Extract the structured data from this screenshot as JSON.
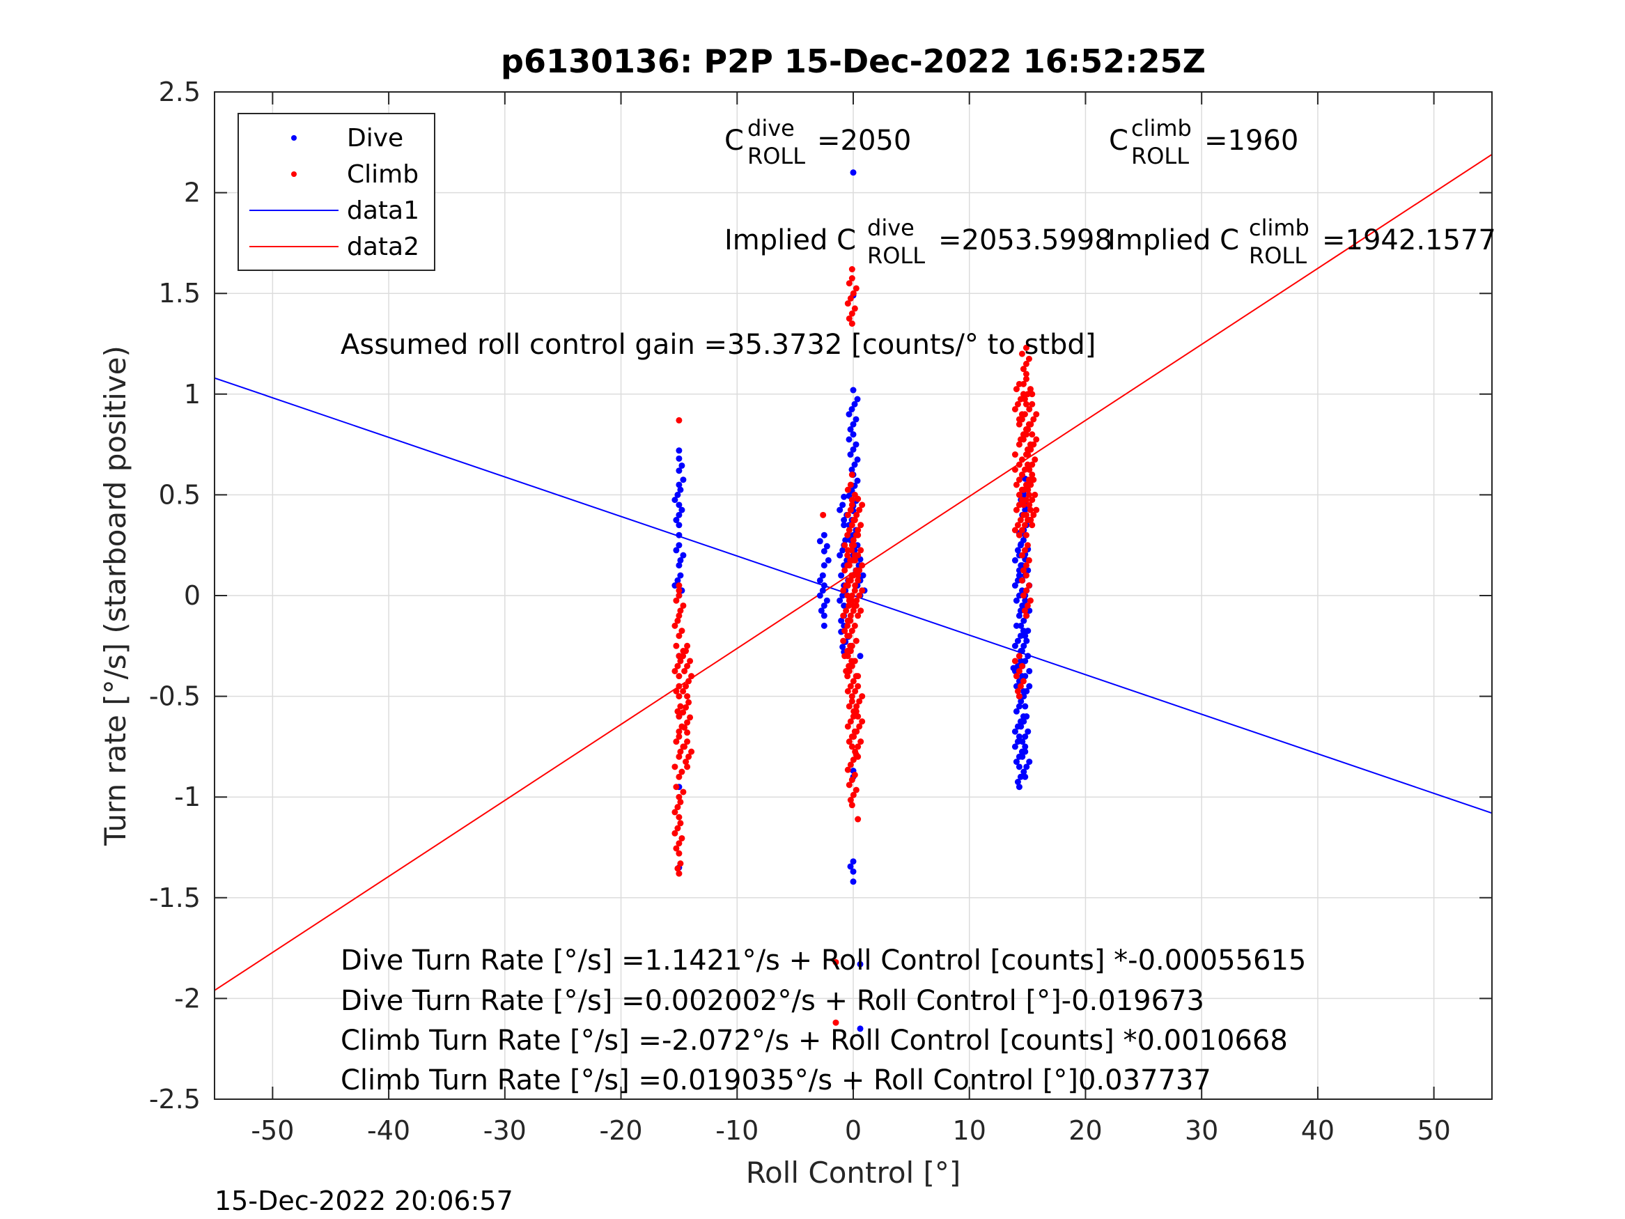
{
  "chart_data": {
    "type": "scatter",
    "title": "p6130136: P2P 15-Dec-2022 16:52:25Z",
    "xlabel": "Roll Control [°]",
    "ylabel": "Turn rate [°/s] (starboard positive)",
    "xlim": [
      -55,
      55
    ],
    "ylim": [
      -2.5,
      2.5
    ],
    "xticks": [
      -50,
      -40,
      -30,
      -20,
      -10,
      0,
      10,
      20,
      30,
      40,
      50
    ],
    "xtick_labels": [
      "-50",
      "-40",
      "-30",
      "-20",
      "-10",
      "0",
      "10",
      "20",
      "30",
      "40",
      "50"
    ],
    "yticks": [
      -2.5,
      -2,
      -1.5,
      -1,
      -0.5,
      0,
      0.5,
      1,
      1.5,
      2,
      2.5
    ],
    "ytick_labels": [
      "-2.5",
      "-2",
      "-1.5",
      "-1",
      "-0.5",
      "0",
      "0.5",
      "1",
      "1.5",
      "2",
      "2.5"
    ],
    "grid": true,
    "legend": {
      "position": "top-left",
      "entries": [
        {
          "label": "Dive",
          "style": "dots",
          "color": "#0000ff"
        },
        {
          "label": "Climb",
          "style": "dots",
          "color": "#ff0000"
        },
        {
          "label": "data1",
          "style": "line",
          "color": "#0000ff"
        },
        {
          "label": "data2",
          "style": "line",
          "color": "#ff0000"
        }
      ]
    },
    "fit_lines": [
      {
        "name": "data1",
        "color": "#0000ff",
        "x": [
          -55,
          55
        ],
        "y": [
          1.08,
          -1.08
        ]
      },
      {
        "name": "data2",
        "color": "#ff0000",
        "x": [
          -55,
          55
        ],
        "y": [
          -1.96,
          2.19
        ]
      }
    ],
    "point_clusters": [
      {
        "series": "Dive",
        "color": "#0000ff",
        "x": -15,
        "y": [
          -1.35,
          -0.95,
          -0.6,
          -0.3,
          0.0,
          0.15,
          0.25,
          0.3,
          0.35,
          0.45,
          0.55,
          0.62,
          0.68,
          0.72
        ]
      },
      {
        "series": "Dive",
        "color": "#0000ff",
        "x": -2.5,
        "y": [
          -0.15,
          -0.1,
          0.05,
          0.15,
          0.22,
          0.3
        ]
      },
      {
        "series": "Dive",
        "color": "#0000ff",
        "x": -0.8,
        "y": [
          -0.28,
          -0.15,
          -0.05,
          0.05,
          0.15,
          0.25,
          0.35,
          0.49
        ]
      },
      {
        "series": "Dive",
        "color": "#0000ff",
        "x": 0.0,
        "y": [
          -1.42,
          -1.37,
          -1.32,
          -0.9,
          -0.87,
          0.2,
          0.42,
          0.6,
          0.8,
          1.02,
          1.49,
          2.1
        ]
      },
      {
        "series": "Dive",
        "color": "#0000ff",
        "x": 0.6,
        "y": [
          -2.15,
          -1.83,
          -0.3,
          0.0,
          0.18
        ]
      },
      {
        "series": "Dive",
        "color": "#0000ff",
        "x": 14.3,
        "y": [
          -0.95,
          -0.85,
          -0.7,
          -0.5,
          -0.3,
          -0.1,
          0.1,
          0.2,
          0.31
        ]
      },
      {
        "series": "Dive",
        "color": "#0000ff",
        "x": 14.8,
        "y": [
          -0.9,
          -0.75,
          -0.55,
          -0.4,
          -0.2,
          0.0,
          0.18,
          0.3,
          0.58
        ]
      },
      {
        "series": "Dive",
        "color": "#0000ff",
        "x": 13.8,
        "y": [
          -0.36
        ]
      },
      {
        "series": "Climb",
        "color": "#ff0000",
        "x": -15,
        "y": [
          -1.38,
          -1.28,
          -1.1,
          -1.0,
          -0.9,
          -0.8,
          -0.7,
          -0.6,
          -0.5,
          -0.4,
          -0.3,
          -0.2,
          -0.1,
          0.0,
          0.05,
          0.87
        ]
      },
      {
        "series": "Climb",
        "color": "#ff0000",
        "x": -14.3,
        "y": [
          -0.85,
          -0.68,
          -0.5,
          -0.25
        ]
      },
      {
        "series": "Climb",
        "color": "#ff0000",
        "x": -2.6,
        "y": [
          0.4
        ]
      },
      {
        "series": "Climb",
        "color": "#ff0000",
        "x": -1.5,
        "y": [
          -2.12,
          -1.82
        ]
      },
      {
        "series": "Climb",
        "color": "#ff0000",
        "x": -0.5,
        "y": [
          -0.4,
          -0.2,
          0.0,
          0.2,
          0.3
        ]
      },
      {
        "series": "Climb",
        "color": "#ff0000",
        "x": -0.1,
        "y": [
          -1.04,
          -0.75,
          -0.5,
          -0.25,
          0.0,
          0.25,
          0.45,
          0.6,
          1.35,
          1.62
        ]
      },
      {
        "series": "Climb",
        "color": "#ff0000",
        "x": 0.4,
        "y": [
          -1.11,
          -0.8,
          -0.6,
          -0.4,
          -0.1,
          0.1,
          0.3,
          0.48
        ]
      },
      {
        "series": "Climb",
        "color": "#ff0000",
        "x": 14.3,
        "y": [
          -0.5,
          -0.3,
          0.3,
          0.5,
          0.65,
          0.75,
          0.85,
          1.05
        ]
      },
      {
        "series": "Climb",
        "color": "#ff0000",
        "x": 14.9,
        "y": [
          -0.1,
          0.1,
          0.3,
          0.4,
          0.55,
          0.7,
          0.8,
          0.95,
          1.1,
          1.23
        ]
      },
      {
        "series": "Climb",
        "color": "#ff0000",
        "x": 15.4,
        "y": [
          0.35,
          0.6,
          0.8,
          1.0
        ]
      }
    ],
    "annotations": {
      "c_dive": {
        "base": "C",
        "sup": "dive",
        "sub": "ROLL",
        "value": "=2050"
      },
      "c_climb": {
        "base": "C",
        "sup": "climb",
        "sub": "ROLL",
        "value": "=1960"
      },
      "implied_dive": {
        "prefix": "Implied C",
        "sup": "dive",
        "sub": "ROLL",
        "value": "=2053.5998"
      },
      "implied_climb": {
        "prefix": "Implied C",
        "sup": "climb",
        "sub": "ROLL",
        "value": "=1942.1577"
      },
      "gain": "Assumed roll control gain =35.3732 [counts/° to stbd]",
      "eq1": "Dive Turn Rate [°/s] =1.1421°/s + Roll Control [counts] *-0.00055615",
      "eq2": "Dive Turn Rate [°/s] =0.002002°/s + Roll Control [°]-0.019673",
      "eq3": "Climb Turn Rate [°/s] =-2.072°/s + Roll Control [counts] *0.0010668",
      "eq4": "Climb Turn Rate [°/s] =0.019035°/s + Roll Control [°]0.037737"
    }
  },
  "timestamp": "15-Dec-2022 20:06:57"
}
